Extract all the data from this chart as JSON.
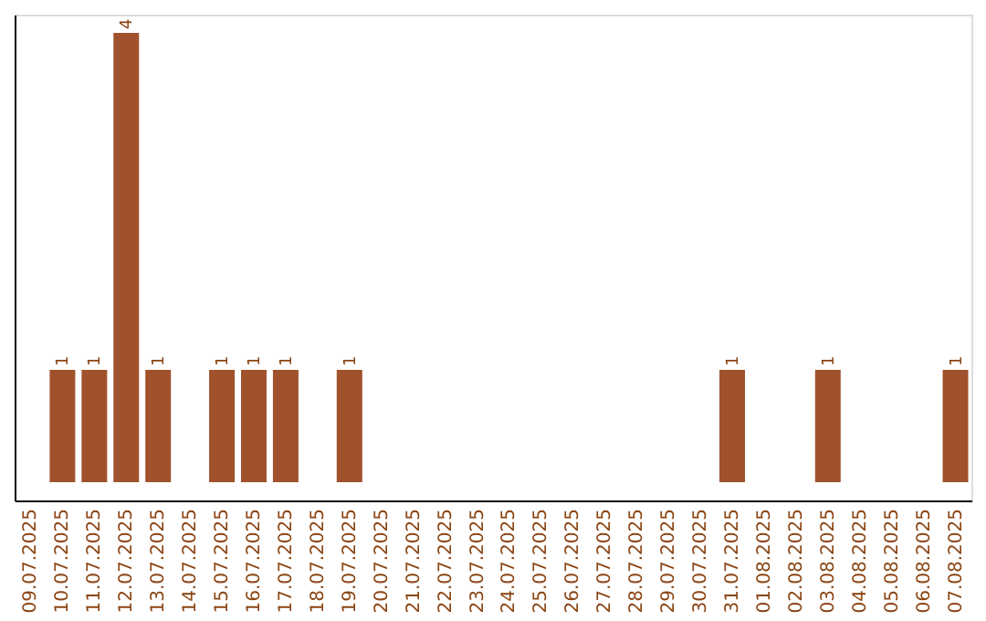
{
  "chart_data": {
    "type": "bar",
    "categories": [
      "09.07.2025",
      "10.07.2025",
      "11.07.2025",
      "12.07.2025",
      "13.07.2025",
      "14.07.2025",
      "15.07.2025",
      "16.07.2025",
      "17.07.2025",
      "18.07.2025",
      "19.07.2025",
      "20.07.2025",
      "21.07.2025",
      "22.07.2025",
      "23.07.2025",
      "24.07.2025",
      "25.07.2025",
      "26.07.2025",
      "27.07.2025",
      "28.07.2025",
      "29.07.2025",
      "30.07.2025",
      "31.07.2025",
      "01.08.2025",
      "02.08.2025",
      "03.08.2025",
      "04.08.2025",
      "05.08.2025",
      "06.08.2025",
      "07.08.2025"
    ],
    "values": [
      0,
      1,
      1,
      4,
      1,
      0,
      1,
      1,
      1,
      0,
      1,
      0,
      0,
      0,
      0,
      0,
      0,
      0,
      0,
      0,
      0,
      0,
      1,
      0,
      0,
      1,
      0,
      0,
      0,
      1
    ],
    "value_labels": [
      null,
      "1",
      "1",
      "4",
      "1",
      null,
      "1",
      "1",
      "1",
      null,
      "1",
      null,
      null,
      null,
      null,
      null,
      null,
      null,
      null,
      null,
      null,
      null,
      "1",
      null,
      null,
      "1",
      null,
      null,
      null,
      "1"
    ],
    "color": "#a0522d",
    "tick_labels": "x"
  }
}
